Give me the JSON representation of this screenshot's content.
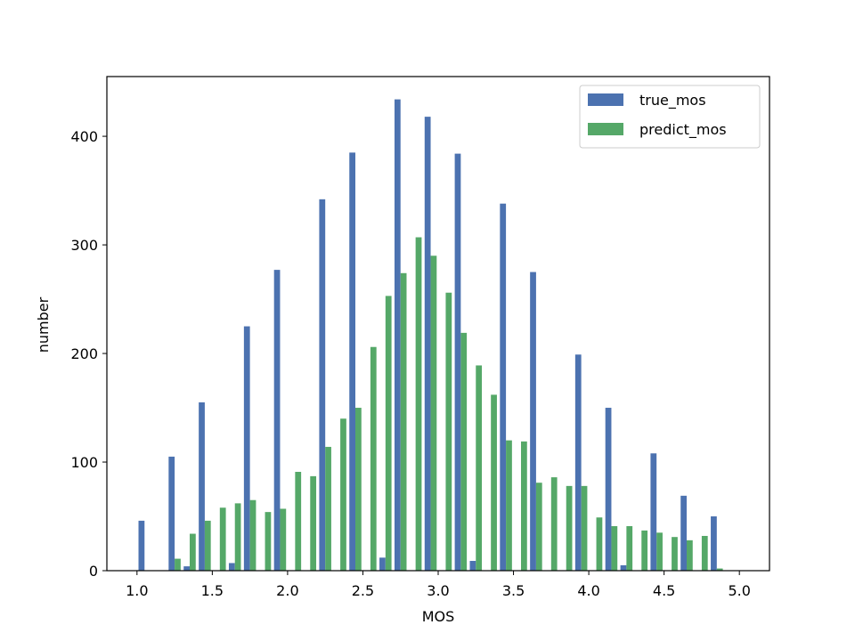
{
  "chart_data": {
    "type": "bar",
    "title": "",
    "xlabel": "MOS",
    "ylabel": "number",
    "xlim": [
      0.8,
      5.2
    ],
    "ylim": [
      0,
      455
    ],
    "x_ticks": [
      1.0,
      1.5,
      2.0,
      2.5,
      3.0,
      3.5,
      4.0,
      4.5,
      5.0
    ],
    "x_tick_labels": [
      "1.0",
      "1.5",
      "2.0",
      "2.5",
      "3.0",
      "3.5",
      "4.0",
      "4.5",
      "5.0"
    ],
    "y_ticks": [
      0,
      100,
      200,
      300,
      400
    ],
    "y_tick_labels": [
      "0",
      "100",
      "200",
      "300",
      "400"
    ],
    "grid": false,
    "legend_position": "top-right",
    "bin_edges": [
      1.0,
      1.1,
      1.2,
      1.3,
      1.4,
      1.5,
      1.6,
      1.7,
      1.8,
      1.9,
      2.0,
      2.1,
      2.2,
      2.3,
      2.4,
      2.5,
      2.6,
      2.7,
      2.8,
      2.9,
      3.0,
      3.1,
      3.2,
      3.3,
      3.4,
      3.5,
      3.6,
      3.7,
      3.8,
      3.9,
      4.0,
      4.1,
      4.2,
      4.3,
      4.4,
      4.5,
      4.6,
      4.7,
      4.8,
      4.9,
      5.0
    ],
    "series": [
      {
        "name": "true_mos",
        "color": "#4c72b0",
        "values": [
          46,
          0,
          105,
          4,
          155,
          0,
          7,
          225,
          0,
          277,
          0,
          0,
          342,
          0,
          385,
          0,
          12,
          434,
          0,
          418,
          0,
          384,
          9,
          0,
          338,
          0,
          275,
          0,
          0,
          199,
          0,
          150,
          5,
          0,
          108,
          0,
          69,
          0,
          50,
          0
        ]
      },
      {
        "name": "predict_mos",
        "color": "#55a868",
        "values": [
          0,
          0,
          11,
          34,
          46,
          58,
          62,
          65,
          54,
          57,
          91,
          87,
          114,
          140,
          150,
          206,
          253,
          274,
          307,
          290,
          256,
          219,
          189,
          162,
          120,
          119,
          81,
          86,
          78,
          78,
          49,
          41,
          41,
          37,
          35,
          31,
          28,
          32,
          2,
          0
        ]
      }
    ]
  }
}
